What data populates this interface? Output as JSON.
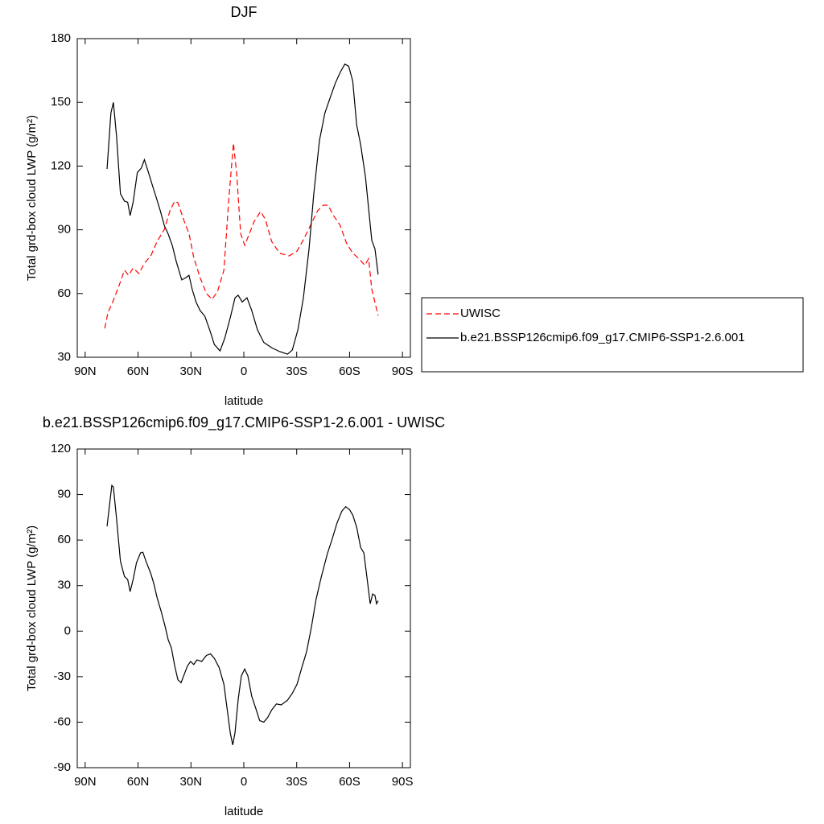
{
  "chart_data": [
    {
      "type": "line",
      "title": "DJF",
      "xlabel": "latitude",
      "ylabel": "Total grd-box cloud LWP (g/m²)",
      "xlim": [
        94.5,
        -94.5
      ],
      "xticks": [
        {
          "value": 90,
          "label": "90N"
        },
        {
          "value": 60,
          "label": "60N"
        },
        {
          "value": 30,
          "label": "30N"
        },
        0,
        {
          "value": -30,
          "label": "30S"
        },
        {
          "value": -60,
          "label": "60S"
        },
        {
          "value": -90,
          "label": "90S"
        }
      ],
      "ylim": [
        30,
        180
      ],
      "yticks": [
        30,
        60,
        90,
        120,
        150,
        180
      ],
      "legend": "right",
      "series": [
        {
          "name": "UWISC",
          "color": "#ff0000",
          "dash": true,
          "x": [
            78.9,
            77.1,
            74.4,
            70.8,
            67.7,
            65.4,
            62.8,
            59.5,
            56.4,
            52.8,
            49.2,
            45.1,
            41.9,
            39.2,
            37.4,
            33.8,
            31.1,
            28.4,
            24.8,
            21.2,
            18.0,
            14.9,
            11.3,
            8.6,
            5.9,
            4.1,
            1.8,
            -0.5,
            -3.2,
            -5.9,
            -9.5,
            -12.2,
            -15.8,
            -20.3,
            -25.7,
            -30.2,
            -33.8,
            -38.3,
            -41.9,
            -45.1,
            -47.8,
            -50.9,
            -54.6,
            -58.2,
            -61.8,
            -65.4,
            -68.6,
            -70.8,
            -72.6,
            -76.2
          ],
          "values": [
            43.6,
            51,
            56,
            63.7,
            71,
            68.6,
            72,
            69.4,
            74.3,
            77.7,
            84.5,
            90.2,
            99,
            103.5,
            102.7,
            94,
            88.3,
            77,
            67.5,
            60,
            57.3,
            61,
            71,
            103.5,
            130.8,
            117,
            88.3,
            82.7,
            88.3,
            94,
            98.6,
            95,
            84.5,
            79,
            77.7,
            80,
            85.3,
            92.9,
            99,
            101.6,
            101.6,
            96.7,
            92.2,
            83.8,
            79,
            76.4,
            73.3,
            76.4,
            62,
            49.7
          ]
        },
        {
          "name": "b.e21.BSSP126cmip6.f09_g17.CMIP6-SSP1-2.6.001",
          "color": "#000000",
          "dash": false,
          "x": [
            77.6,
            75.4,
            74,
            72.2,
            70,
            67.7,
            65.9,
            64.5,
            62.8,
            60.4,
            58.2,
            56.4,
            54.1,
            51.9,
            49.6,
            47.4,
            45.1,
            42.9,
            40.6,
            38.3,
            35.2,
            32.9,
            31.1,
            29.3,
            27.1,
            24.8,
            22.1,
            19.4,
            16.7,
            13.5,
            10.8,
            7.7,
            5.0,
            3.2,
            0.9,
            -1.8,
            -4.5,
            -7.7,
            -11.3,
            -15.8,
            -20.3,
            -24.8,
            -27.5,
            -30.7,
            -33.8,
            -37.0,
            -39.7,
            -42.9,
            -46.0,
            -49.2,
            -51.9,
            -54.6,
            -57.3,
            -59.5,
            -61.8,
            -64.0,
            -66.3,
            -69.0,
            -70.8,
            -72.6,
            -74.4,
            -76.2
          ],
          "values": [
            118.6,
            145,
            150,
            134,
            107,
            103.5,
            103,
            96.7,
            103,
            117,
            119,
            123,
            117,
            111,
            105,
            99,
            92,
            88,
            82.7,
            75,
            66.4,
            67.5,
            68.6,
            62,
            56,
            52,
            49.3,
            43,
            36,
            33,
            39,
            48.6,
            58,
            59.2,
            56,
            58,
            52,
            43,
            37,
            34.5,
            32.7,
            31.5,
            33.4,
            43,
            58,
            81,
            107,
            132,
            145,
            152.7,
            159,
            164,
            168,
            167,
            160,
            139.5,
            130,
            115,
            100,
            85,
            81,
            69
          ]
        }
      ]
    },
    {
      "type": "line",
      "title": "b.e21.BSSP126cmip6.f09_g17.CMIP6-SSP1-2.6.001 - UWISC",
      "xlabel": "latitude",
      "ylabel": "Total grd-box cloud LWP (g/m²)",
      "xlim": [
        94.5,
        -94.5
      ],
      "xticks": [
        {
          "value": 90,
          "label": "90N"
        },
        {
          "value": 60,
          "label": "60N"
        },
        {
          "value": 30,
          "label": "30N"
        },
        0,
        {
          "value": -30,
          "label": "30S"
        },
        {
          "value": -60,
          "label": "60S"
        },
        {
          "value": -90,
          "label": "90S"
        }
      ],
      "ylim": [
        -90,
        120
      ],
      "yticks": [
        -90,
        -60,
        -30,
        0,
        30,
        60,
        90,
        120
      ],
      "series": [
        {
          "color": "#000000",
          "dash": false,
          "x": [
            77.6,
            76.2,
            74.9,
            74,
            72.2,
            70,
            67.7,
            65.9,
            64.5,
            62.8,
            60.9,
            58.6,
            57.3,
            55.5,
            52.8,
            51.0,
            49.2,
            46.9,
            44.7,
            42.9,
            41.1,
            39.2,
            37.4,
            35.6,
            33.8,
            32.0,
            30.2,
            28.4,
            26.6,
            23.9,
            21.2,
            18.9,
            16.7,
            14.0,
            11.3,
            9.5,
            7.7,
            6.3,
            5.0,
            3.2,
            1.4,
            -0.5,
            -2.3,
            -4.5,
            -6.8,
            -9.0,
            -11.3,
            -13.5,
            -15.8,
            -18.5,
            -21.2,
            -24.8,
            -27.5,
            -30.2,
            -32.9,
            -35.6,
            -38.3,
            -41.0,
            -43.8,
            -47.4,
            -50.1,
            -52.8,
            -55.6,
            -57.8,
            -60.0,
            -61.8,
            -64.0,
            -66.3,
            -68.1,
            -69.9,
            -71.7,
            -73.1,
            -74.4,
            -75.3,
            -76.2
          ],
          "values": [
            69,
            83,
            96,
            95,
            74,
            46,
            36,
            34,
            26,
            34,
            45,
            51.6,
            52,
            46,
            38,
            31,
            22,
            13,
            3.3,
            -5.7,
            -11,
            -23,
            -32,
            -34,
            -28.5,
            -23,
            -20,
            -22,
            -19,
            -20,
            -16,
            -15,
            -18,
            -24,
            -35,
            -51,
            -67,
            -75,
            -67,
            -45,
            -29.5,
            -25,
            -29.5,
            -43,
            -51,
            -59,
            -60,
            -57,
            -52,
            -48,
            -48.6,
            -45.5,
            -41,
            -35,
            -24,
            -13.6,
            2.3,
            21,
            35,
            51,
            60.6,
            71,
            79,
            82,
            80,
            76.5,
            68.6,
            55,
            51.6,
            35,
            18,
            24.5,
            23.5,
            18,
            20
          ]
        }
      ]
    }
  ]
}
